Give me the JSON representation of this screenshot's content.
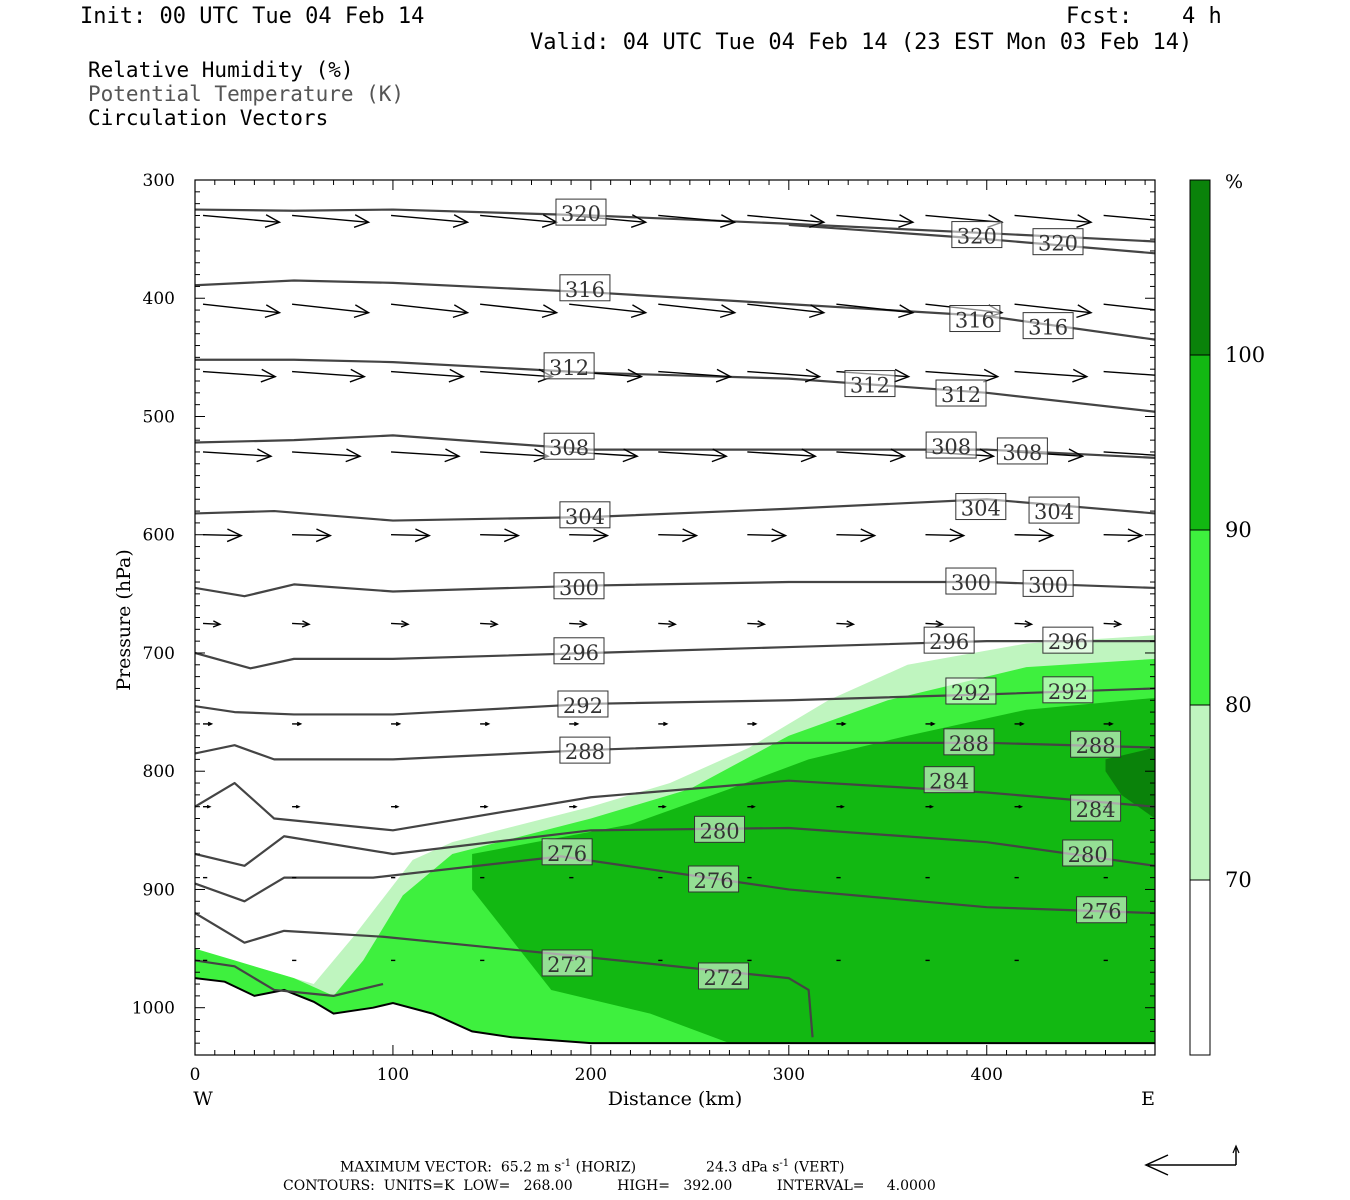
{
  "header": {
    "init": "Init: 00 UTC Tue 04 Feb 14",
    "fcst_label": "Fcst:",
    "fcst_value": "4 h",
    "valid": "Valid: 04 UTC Tue 04 Feb 14 (23 EST Mon 03 Feb 14)"
  },
  "legend": {
    "rh": "Relative Humidity (%)",
    "theta": "Potential Temperature (K)",
    "vectors": "Circulation Vectors"
  },
  "footer": {
    "line1_a": "MAXIMUM VECTOR:  65.2 m s",
    "line1_b": " (HORIZ)",
    "line1_c": "24.3 dPa s",
    "line1_d": " (VERT)",
    "sup": "-1",
    "line2": "CONTOURS:  UNITS=K  LOW=   268.00          HIGH=   392.00          INTERVAL=     4.0000"
  },
  "colors": {
    "rh_70_80": "#bff5bf",
    "rh_80_90": "#3ef03e",
    "rh_90_100": "#12b812",
    "rh_100_plus": "#0a820a",
    "theta_line": "#444444"
  },
  "chart_data": {
    "type": "cross-section",
    "xlabel": "Distance (km)",
    "ylabel": "Pressure (hPa)",
    "x_ticks": [
      "0",
      "100",
      "200",
      "300",
      "400"
    ],
    "y_ticks": [
      "300",
      "400",
      "500",
      "600",
      "700",
      "800",
      "900",
      "1000"
    ],
    "xlim": [
      0,
      485
    ],
    "ylim": [
      1040,
      300
    ],
    "x_start_label": "W",
    "x_end_label": "E",
    "colorbar": {
      "unit": "%",
      "levels": [
        "70",
        "80",
        "90",
        "100"
      ],
      "fill_levels": [
        70,
        80,
        90,
        100
      ]
    },
    "theta_contours": [
      {
        "label": "320",
        "pts": [
          [
            0,
            325
          ],
          [
            50,
            326
          ],
          [
            100,
            325
          ],
          [
            200,
            330
          ],
          [
            300,
            337
          ],
          [
            400,
            345
          ],
          [
            485,
            352
          ]
        ],
        "labels_at": [
          [
            195,
            328
          ],
          [
            395,
            347
          ],
          [
            436,
            353
          ]
        ]
      },
      {
        "label": "320",
        "pts": [
          [
            300,
            338
          ],
          [
            400,
            350
          ],
          [
            485,
            362
          ]
        ],
        "labels_at": []
      },
      {
        "label": "316",
        "pts": [
          [
            0,
            389
          ],
          [
            50,
            385
          ],
          [
            100,
            387
          ],
          [
            200,
            395
          ],
          [
            300,
            405
          ],
          [
            400,
            415
          ],
          [
            485,
            435
          ]
        ],
        "labels_at": [
          [
            197,
            392
          ],
          [
            394,
            418
          ],
          [
            431,
            424
          ]
        ]
      },
      {
        "label": "312",
        "pts": [
          [
            0,
            452
          ],
          [
            50,
            452
          ],
          [
            100,
            454
          ],
          [
            200,
            463
          ],
          [
            300,
            468
          ],
          [
            400,
            480
          ],
          [
            485,
            496
          ]
        ],
        "labels_at": [
          [
            189,
            458
          ],
          [
            341,
            473
          ],
          [
            387,
            481
          ]
        ]
      },
      {
        "label": "308",
        "pts": [
          [
            0,
            522
          ],
          [
            50,
            520
          ],
          [
            100,
            516
          ],
          [
            200,
            528
          ],
          [
            300,
            528
          ],
          [
            400,
            528
          ],
          [
            485,
            535
          ]
        ],
        "labels_at": [
          [
            189,
            526
          ],
          [
            382,
            525
          ],
          [
            418,
            530
          ]
        ]
      },
      {
        "label": "304",
        "pts": [
          [
            0,
            582
          ],
          [
            40,
            580
          ],
          [
            100,
            588
          ],
          [
            200,
            585
          ],
          [
            300,
            578
          ],
          [
            400,
            570
          ],
          [
            485,
            582
          ]
        ],
        "labels_at": [
          [
            197,
            584
          ],
          [
            397,
            577
          ],
          [
            434,
            580
          ]
        ]
      },
      {
        "label": "300",
        "pts": [
          [
            0,
            645
          ],
          [
            25,
            652
          ],
          [
            50,
            642
          ],
          [
            100,
            648
          ],
          [
            200,
            643
          ],
          [
            300,
            640
          ],
          [
            400,
            640
          ],
          [
            485,
            645
          ]
        ],
        "labels_at": [
          [
            194,
            644
          ],
          [
            392,
            640
          ],
          [
            431,
            642
          ]
        ]
      },
      {
        "label": "296",
        "pts": [
          [
            0,
            700
          ],
          [
            28,
            713
          ],
          [
            50,
            705
          ],
          [
            100,
            705
          ],
          [
            200,
            700
          ],
          [
            300,
            695
          ],
          [
            400,
            690
          ],
          [
            485,
            690
          ]
        ],
        "labels_at": [
          [
            194,
            699
          ],
          [
            381,
            690
          ],
          [
            441,
            690
          ]
        ]
      },
      {
        "label": "292",
        "pts": [
          [
            0,
            745
          ],
          [
            20,
            750
          ],
          [
            50,
            752
          ],
          [
            100,
            752
          ],
          [
            200,
            743
          ],
          [
            300,
            740
          ],
          [
            400,
            735
          ],
          [
            485,
            730
          ]
        ],
        "labels_at": [
          [
            196,
            744
          ],
          [
            392,
            733
          ],
          [
            441,
            732
          ]
        ]
      },
      {
        "label": "288",
        "pts": [
          [
            0,
            785
          ],
          [
            20,
            778
          ],
          [
            40,
            790
          ],
          [
            100,
            790
          ],
          [
            200,
            782
          ],
          [
            300,
            776
          ],
          [
            400,
            776
          ],
          [
            485,
            780
          ]
        ],
        "labels_at": [
          [
            197,
            783
          ],
          [
            391,
            776
          ],
          [
            455,
            778
          ]
        ]
      },
      {
        "label": "284",
        "pts": [
          [
            0,
            830
          ],
          [
            20,
            810
          ],
          [
            40,
            840
          ],
          [
            100,
            850
          ],
          [
            200,
            822
          ],
          [
            300,
            808
          ],
          [
            400,
            818
          ],
          [
            485,
            830
          ]
        ],
        "labels_at": [
          [
            381,
            808
          ],
          [
            455,
            832
          ]
        ]
      },
      {
        "label": "280",
        "pts": [
          [
            0,
            870
          ],
          [
            25,
            880
          ],
          [
            45,
            855
          ],
          [
            100,
            870
          ],
          [
            200,
            850
          ],
          [
            300,
            848
          ],
          [
            400,
            860
          ],
          [
            485,
            880
          ]
        ],
        "labels_at": [
          [
            265,
            850
          ],
          [
            451,
            870
          ]
        ]
      },
      {
        "label": "276",
        "pts": [
          [
            0,
            895
          ],
          [
            25,
            910
          ],
          [
            45,
            890
          ],
          [
            90,
            890
          ],
          [
            185,
            872
          ],
          [
            300,
            900
          ],
          [
            400,
            915
          ],
          [
            485,
            920
          ]
        ],
        "labels_at": [
          [
            188,
            869
          ],
          [
            262,
            892
          ],
          [
            458,
            918
          ]
        ]
      },
      {
        "label": "272",
        "pts": [
          [
            0,
            920
          ],
          [
            25,
            945
          ],
          [
            45,
            935
          ],
          [
            95,
            940
          ],
          [
            185,
            955
          ],
          [
            300,
            975
          ],
          [
            310,
            985
          ],
          [
            312,
            1025
          ]
        ],
        "labels_at": [
          [
            188,
            963
          ],
          [
            267,
            974
          ]
        ]
      },
      {
        "label": "268",
        "pts": [
          [
            0,
            960
          ],
          [
            20,
            965
          ],
          [
            40,
            985
          ],
          [
            70,
            990
          ],
          [
            95,
            980
          ]
        ],
        "labels_at": []
      }
    ],
    "terrain": [
      [
        0,
        975
      ],
      [
        15,
        978
      ],
      [
        30,
        990
      ],
      [
        45,
        985
      ],
      [
        60,
        995
      ],
      [
        70,
        1005
      ],
      [
        90,
        1000
      ],
      [
        100,
        996
      ],
      [
        120,
        1005
      ],
      [
        140,
        1020
      ],
      [
        160,
        1025
      ],
      [
        200,
        1030
      ],
      [
        300,
        1030
      ],
      [
        400,
        1030
      ],
      [
        485,
        1030
      ]
    ],
    "rh_regions": [
      {
        "level": 70,
        "pts": [
          [
            0,
            955
          ],
          [
            30,
            965
          ],
          [
            60,
            980
          ],
          [
            80,
            940
          ],
          [
            110,
            875
          ],
          [
            130,
            860
          ],
          [
            200,
            830
          ],
          [
            240,
            810
          ],
          [
            280,
            780
          ],
          [
            320,
            740
          ],
          [
            360,
            710
          ],
          [
            420,
            692
          ],
          [
            485,
            685
          ],
          [
            485,
            1030
          ],
          [
            0,
            1030
          ]
        ]
      },
      {
        "level": 80,
        "pts": [
          [
            0,
            950
          ],
          [
            20,
            960
          ],
          [
            50,
            975
          ],
          [
            70,
            990
          ],
          [
            85,
            960
          ],
          [
            105,
            905
          ],
          [
            130,
            870
          ],
          [
            200,
            840
          ],
          [
            250,
            815
          ],
          [
            300,
            770
          ],
          [
            350,
            740
          ],
          [
            420,
            712
          ],
          [
            485,
            705
          ],
          [
            485,
            1030
          ],
          [
            0,
            1030
          ]
        ]
      },
      {
        "level": 90,
        "pts": [
          [
            140,
            870
          ],
          [
            220,
            845
          ],
          [
            270,
            815
          ],
          [
            310,
            790
          ],
          [
            360,
            770
          ],
          [
            420,
            748
          ],
          [
            485,
            738
          ],
          [
            485,
            1030
          ],
          [
            270,
            1030
          ],
          [
            230,
            1005
          ],
          [
            180,
            985
          ],
          [
            140,
            900
          ]
        ]
      },
      {
        "level": 100,
        "pts": [
          [
            460,
            790
          ],
          [
            485,
            780
          ],
          [
            485,
            840
          ],
          [
            468,
            820
          ],
          [
            460,
            800
          ]
        ]
      }
    ],
    "vectors": [
      {
        "p": 330,
        "xs": [
          0,
          45,
          95,
          140,
          185,
          230,
          275,
          320,
          365,
          410,
          455
        ],
        "u": 0.9,
        "v": 0.08
      },
      {
        "p": 405,
        "xs": [
          0,
          45,
          95,
          140,
          185,
          230,
          275,
          320,
          365,
          410,
          455
        ],
        "u": 0.9,
        "v": 0.1
      },
      {
        "p": 462,
        "xs": [
          0,
          45,
          95,
          140,
          185,
          230,
          275,
          320,
          365,
          410,
          455
        ],
        "u": 0.85,
        "v": 0.06
      },
      {
        "p": 530,
        "xs": [
          0,
          45,
          95,
          140,
          185,
          230,
          275,
          320,
          365,
          410,
          455
        ],
        "u": 0.8,
        "v": 0.05
      },
      {
        "p": 600,
        "xs": [
          0,
          45,
          95,
          140,
          185,
          230,
          275,
          320,
          365,
          410,
          455
        ],
        "u": 0.45,
        "v": 0.01
      },
      {
        "p": 675,
        "xs": [
          0,
          45,
          95,
          140,
          185,
          230,
          275,
          320,
          365,
          410,
          455
        ],
        "u": 0.2,
        "v": 0.01
      },
      {
        "p": 760,
        "xs": [
          0,
          45,
          95,
          140,
          185,
          230,
          275,
          320,
          365,
          410,
          455
        ],
        "u": 0.1,
        "v": 0.0
      },
      {
        "p": 830,
        "xs": [
          0,
          45,
          95,
          140,
          185,
          230,
          275,
          320,
          365,
          410,
          455
        ],
        "u": 0.08,
        "v": 0.0
      },
      {
        "p": 890,
        "xs": [
          0,
          45,
          95,
          140,
          185,
          230,
          275,
          320,
          365,
          410,
          455
        ],
        "u": 0.05,
        "v": 0.0
      },
      {
        "p": 960,
        "xs": [
          0,
          45,
          95,
          140,
          185,
          230,
          275,
          320,
          365,
          410,
          455
        ],
        "u": 0.05,
        "v": 0.0
      }
    ]
  }
}
